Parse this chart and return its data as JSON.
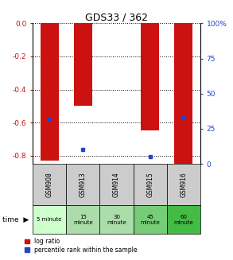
{
  "title": "GDS33 / 362",
  "samples": [
    "GSM908",
    "GSM913",
    "GSM914",
    "GSM915",
    "GSM916"
  ],
  "time_labels": [
    "5 minute",
    "15\nminute",
    "30\nminute",
    "45\nminute",
    "60\nminute"
  ],
  "time_bg_colors": [
    "#ccffcc",
    "#aaddaa",
    "#aaddaa",
    "#77cc77",
    "#44bb44"
  ],
  "log_ratios": [
    -0.83,
    -0.5,
    0.0,
    -0.65,
    -0.87
  ],
  "percentile_ranks": [
    32,
    10,
    0,
    5,
    33
  ],
  "ylim_left": [
    -0.85,
    0.0
  ],
  "ylim_right": [
    0,
    100
  ],
  "yticks_left": [
    0.0,
    -0.2,
    -0.4,
    -0.6,
    -0.8
  ],
  "yticks_right": [
    0,
    25,
    50,
    75,
    100
  ],
  "bar_color": "#cc1111",
  "percentile_color": "#2244cc",
  "bar_width": 0.55,
  "sample_bg_color": "#cccccc",
  "left_axis_color": "#cc1111",
  "right_axis_color": "#2244cc",
  "fig_width": 2.93,
  "fig_height": 3.27,
  "dpi": 100
}
